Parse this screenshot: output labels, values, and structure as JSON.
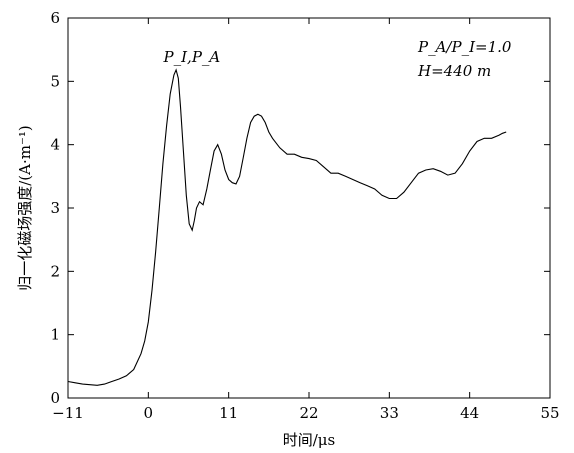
{
  "chart_data": {
    "type": "line",
    "xlabel": "时间/μs",
    "ylabel": "归一化磁场强度/(A·m⁻¹)",
    "xlim": [
      -11,
      55
    ],
    "ylim": [
      0,
      6
    ],
    "xticks": [
      "-11",
      "0",
      "11",
      "22",
      "33",
      "44",
      "55"
    ],
    "yticks": [
      "0",
      "1",
      "2",
      "3",
      "4",
      "5",
      "6"
    ],
    "annotations": {
      "peak": "P_I,P_A",
      "ratio": "P_A/P_I=1.0",
      "height": "H=440 m"
    },
    "series": [
      {
        "x": [
          -11,
          -10,
          -9,
          -8,
          -7,
          -6,
          -5,
          -4,
          -3,
          -2,
          -1,
          -0.5,
          0,
          0.5,
          1,
          1.5,
          2,
          2.5,
          3,
          3.5,
          3.8,
          4.1,
          4.4,
          4.8,
          5.2,
          5.6,
          6.0,
          6.3,
          6.6,
          7.0,
          7.5,
          8.0,
          8.5,
          9.0,
          9.5,
          10.0,
          10.5,
          11.0,
          11.5,
          12.0,
          12.5,
          13.0,
          13.5,
          14.0,
          14.5,
          15.0,
          15.5,
          16.0,
          16.5,
          17.0,
          18.0,
          19.0,
          20.0,
          21.0,
          22.0,
          23.0,
          24.0,
          25.0,
          26.0,
          27.0,
          28.0,
          29.0,
          30.0,
          31.0,
          32.0,
          33.0,
          34.0,
          35.0,
          36.0,
          37.0,
          38.0,
          39.0,
          40.0,
          41.0,
          42.0,
          43.0,
          44.0,
          45.0,
          46.0,
          47.0,
          48.0,
          48.5,
          49.0
        ],
        "y": [
          0.26,
          0.24,
          0.22,
          0.21,
          0.2,
          0.22,
          0.26,
          0.3,
          0.35,
          0.45,
          0.7,
          0.9,
          1.2,
          1.7,
          2.3,
          3.0,
          3.7,
          4.3,
          4.8,
          5.1,
          5.18,
          5.05,
          4.6,
          3.9,
          3.2,
          2.75,
          2.65,
          2.8,
          3.0,
          3.1,
          3.05,
          3.3,
          3.6,
          3.9,
          4.0,
          3.85,
          3.6,
          3.45,
          3.4,
          3.38,
          3.5,
          3.8,
          4.1,
          4.35,
          4.45,
          4.48,
          4.45,
          4.35,
          4.2,
          4.1,
          3.95,
          3.85,
          3.85,
          3.8,
          3.78,
          3.75,
          3.65,
          3.55,
          3.55,
          3.5,
          3.45,
          3.4,
          3.35,
          3.3,
          3.2,
          3.15,
          3.15,
          3.25,
          3.4,
          3.55,
          3.6,
          3.62,
          3.58,
          3.52,
          3.55,
          3.7,
          3.9,
          4.05,
          4.1,
          4.1,
          4.15,
          4.18,
          4.2
        ]
      }
    ]
  }
}
